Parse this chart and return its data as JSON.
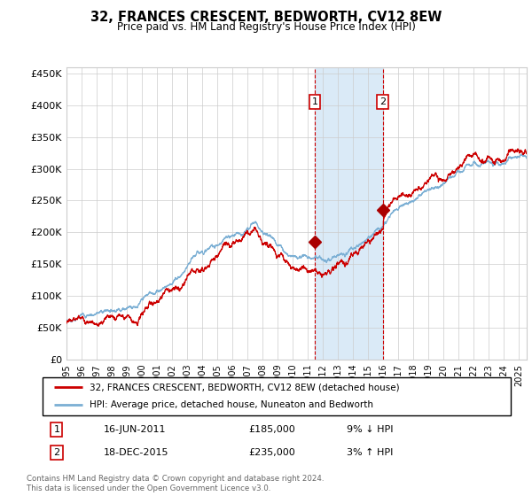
{
  "title": "32, FRANCES CRESCENT, BEDWORTH, CV12 8EW",
  "subtitle": "Price paid vs. HM Land Registry's House Price Index (HPI)",
  "footer": "Contains HM Land Registry data © Crown copyright and database right 2024.\nThis data is licensed under the Open Government Licence v3.0.",
  "hpi_color": "#7bafd4",
  "price_color": "#cc0000",
  "marker_color": "#aa0000",
  "background_color": "#ffffff",
  "grid_color": "#cccccc",
  "shading_color": "#daeaf7",
  "dashed_line_color": "#cc0000",
  "yticks": [
    0,
    50000,
    100000,
    150000,
    200000,
    250000,
    300000,
    350000,
    400000,
    450000
  ],
  "ytick_labels": [
    "£0",
    "£50K",
    "£100K",
    "£150K",
    "£200K",
    "£250K",
    "£300K",
    "£350K",
    "£400K",
    "£450K"
  ],
  "xmin_year": 1995.0,
  "xmax_year": 2025.5,
  "ymin": 0,
  "ymax": 460000,
  "purchase1_date": 2011.458,
  "purchase1_price": 185000,
  "purchase1_label": "1",
  "purchase2_date": 2015.963,
  "purchase2_price": 235000,
  "purchase2_label": "2",
  "shade_start": 2011.458,
  "shade_end": 2015.963,
  "legend_line1": "32, FRANCES CRESCENT, BEDWORTH, CV12 8EW (detached house)",
  "legend_line2": "HPI: Average price, detached house, Nuneaton and Bedworth",
  "table_row1": [
    "1",
    "16-JUN-2011",
    "£185,000",
    "9% ↓ HPI"
  ],
  "table_row2": [
    "2",
    "18-DEC-2015",
    "£235,000",
    "3% ↑ HPI"
  ],
  "xtick_years": [
    1995,
    1996,
    1997,
    1998,
    1999,
    2000,
    2001,
    2002,
    2003,
    2004,
    2005,
    2006,
    2007,
    2008,
    2009,
    2010,
    2011,
    2012,
    2013,
    2014,
    2015,
    2016,
    2017,
    2018,
    2019,
    2020,
    2021,
    2022,
    2023,
    2024,
    2025
  ]
}
